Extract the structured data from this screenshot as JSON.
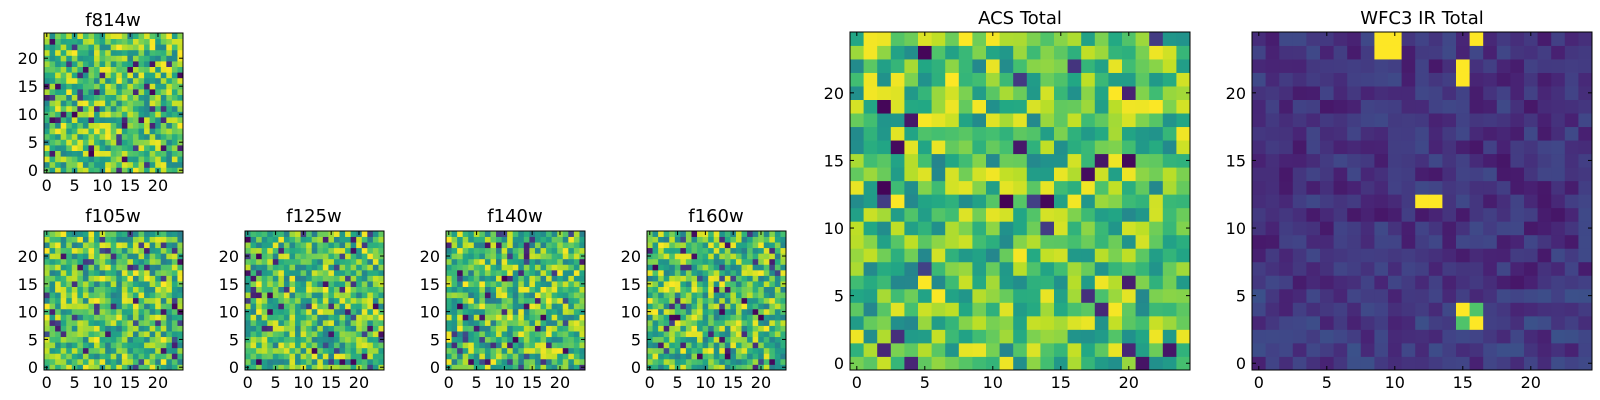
{
  "chart_data": [
    {
      "type": "heatmap",
      "title": "f814w",
      "colormap": "viridis",
      "xlim": [
        0,
        25
      ],
      "ylim": [
        0,
        25
      ],
      "xticks": [
        "0",
        "5",
        "10",
        "15",
        "20"
      ],
      "yticks": [
        "0",
        "5",
        "10",
        "15",
        "20"
      ],
      "grid": false,
      "value_range": [
        0,
        1
      ],
      "values_note_seed": 814
    },
    {
      "type": "heatmap",
      "title": "f105w",
      "colormap": "viridis",
      "xlim": [
        0,
        25
      ],
      "ylim": [
        0,
        25
      ],
      "xticks": [
        "0",
        "5",
        "10",
        "15",
        "20"
      ],
      "yticks": [
        "0",
        "5",
        "10",
        "15",
        "20"
      ],
      "grid": false,
      "value_range": [
        0,
        1
      ],
      "values_note_seed": 105
    },
    {
      "type": "heatmap",
      "title": "f125w",
      "colormap": "viridis",
      "xlim": [
        0,
        25
      ],
      "ylim": [
        0,
        25
      ],
      "xticks": [
        "0",
        "5",
        "10",
        "15",
        "20"
      ],
      "yticks": [
        "0",
        "5",
        "10",
        "15",
        "20"
      ],
      "grid": false,
      "value_range": [
        0,
        1
      ],
      "values_note_seed": 125
    },
    {
      "type": "heatmap",
      "title": "f140w",
      "colormap": "viridis",
      "xlim": [
        0,
        25
      ],
      "ylim": [
        0,
        25
      ],
      "xticks": [
        "0",
        "5",
        "10",
        "15",
        "20"
      ],
      "yticks": [
        "0",
        "5",
        "10",
        "15",
        "20"
      ],
      "grid": false,
      "value_range": [
        0,
        1
      ],
      "values_note_seed": 140
    },
    {
      "type": "heatmap",
      "title": "f160w",
      "colormap": "viridis",
      "xlim": [
        0,
        25
      ],
      "ylim": [
        0,
        25
      ],
      "xticks": [
        "0",
        "5",
        "10",
        "15",
        "20"
      ],
      "yticks": [
        "0",
        "5",
        "10",
        "15",
        "20"
      ],
      "grid": false,
      "value_range": [
        0,
        1
      ],
      "values_note_seed": 160
    },
    {
      "type": "heatmap",
      "title": "ACS Total",
      "colormap": "viridis",
      "xlim": [
        0,
        25
      ],
      "ylim": [
        0,
        25
      ],
      "xticks": [
        "0",
        "5",
        "10",
        "15",
        "20"
      ],
      "yticks": [
        "0",
        "5",
        "10",
        "15",
        "20"
      ],
      "grid": false,
      "value_range": [
        0,
        1
      ],
      "values_note_seed": 1000
    },
    {
      "type": "heatmap",
      "title": "WFC3 IR Total",
      "colormap": "viridis",
      "xlim": [
        0,
        25
      ],
      "ylim": [
        0,
        25
      ],
      "xticks": [
        "0",
        "5",
        "10",
        "15",
        "20"
      ],
      "yticks": [
        "0",
        "5",
        "10",
        "15",
        "20"
      ],
      "grid": false,
      "value_range": [
        0,
        1
      ],
      "bright_cells": [
        {
          "x": 9,
          "y": 24
        },
        {
          "x": 10,
          "y": 24
        },
        {
          "x": 9,
          "y": 23
        },
        {
          "x": 10,
          "y": 23
        },
        {
          "x": 16,
          "y": 24
        },
        {
          "x": 15,
          "y": 22
        },
        {
          "x": 15,
          "y": 21
        },
        {
          "x": 12,
          "y": 12
        },
        {
          "x": 13,
          "y": 12
        },
        {
          "x": 15,
          "y": 4
        },
        {
          "x": 16,
          "y": 3
        }
      ],
      "mid_cells": [
        {
          "x": 15,
          "y": 3
        },
        {
          "x": 16,
          "y": 4
        }
      ],
      "values_note_seed": 2000
    }
  ]
}
